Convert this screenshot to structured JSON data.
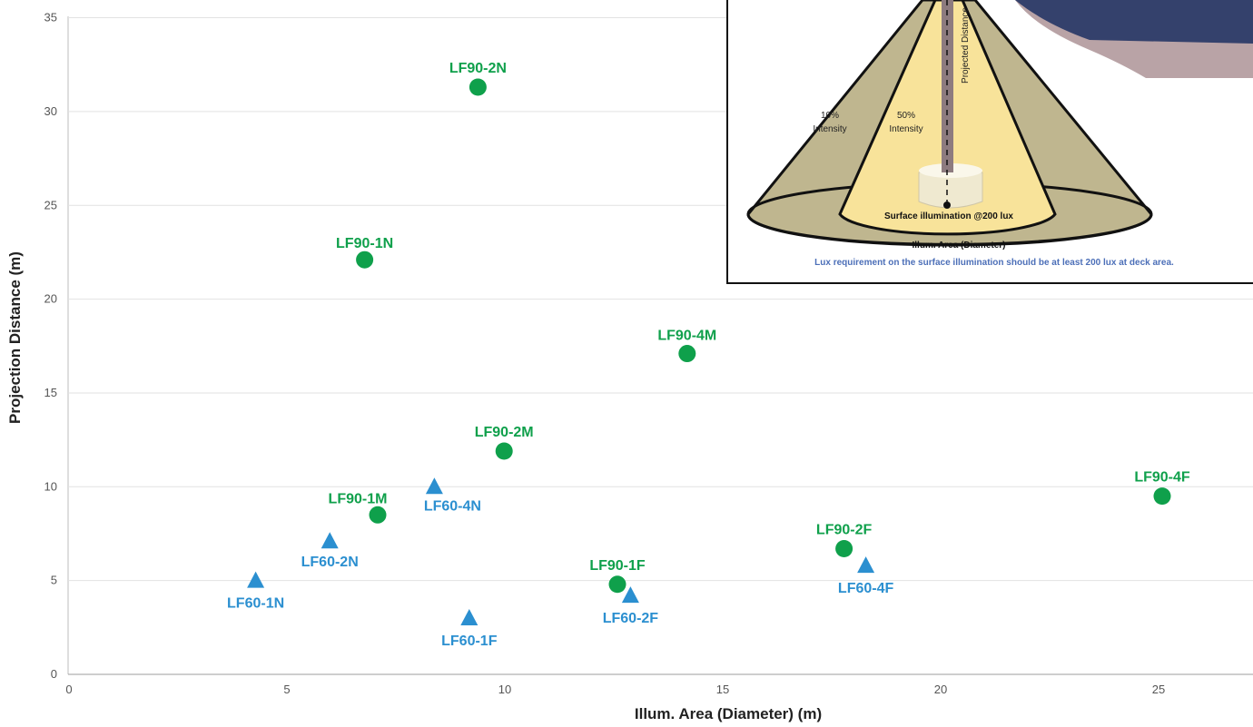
{
  "chart_data": {
    "type": "scatter",
    "title": "",
    "xlabel": "Illum. Area (Diameter) (m)",
    "ylabel": "Projection Distance (m)",
    "xlim": [
      0,
      27.5
    ],
    "ylim": [
      0,
      35
    ],
    "xticks": [
      0,
      5,
      10,
      15,
      20,
      25
    ],
    "yticks": [
      0,
      5,
      10,
      15,
      20,
      25,
      30,
      35
    ],
    "grid": "horizontal",
    "colors": {
      "LF90": "#0fa04b",
      "LF60": "#2b8fd0"
    },
    "series": [
      {
        "marker": "circle",
        "color": "#0fa04b",
        "points": [
          {
            "label": "LF90-2N",
            "x": 9.3,
            "y": 31.3
          },
          {
            "label": "LF90-1N",
            "x": 6.7,
            "y": 22.1
          },
          {
            "label": "LF90-4M",
            "x": 14.1,
            "y": 17.1
          },
          {
            "label": "LF90-2M",
            "x": 9.9,
            "y": 11.9
          },
          {
            "label": "LF90-1M",
            "x": 7.0,
            "y": 8.5
          },
          {
            "label": "LF90-4F",
            "x": 25.0,
            "y": 9.5
          },
          {
            "label": "LF90-2F",
            "x": 17.7,
            "y": 6.7
          },
          {
            "label": "LF90-1F",
            "x": 12.5,
            "y": 4.8
          }
        ]
      },
      {
        "marker": "triangle",
        "color": "#2b8fd0",
        "points": [
          {
            "label": "LF60-4N",
            "x": 8.3,
            "y": 10.0
          },
          {
            "label": "LF60-2N",
            "x": 5.9,
            "y": 7.1
          },
          {
            "label": "LF60-1N",
            "x": 4.2,
            "y": 5.0
          },
          {
            "label": "LF60-1F",
            "x": 9.1,
            "y": 3.0
          },
          {
            "label": "LF60-2F",
            "x": 12.8,
            "y": 4.2
          },
          {
            "label": "LF60-4F",
            "x": 18.2,
            "y": 5.8
          }
        ]
      }
    ]
  },
  "inset": {
    "projected_distance": "Projected Distance",
    "ten_pct": "10%",
    "ten_intensity": "Intensity",
    "fifty_pct": "50%",
    "fifty_intensity": "Intensity",
    "surface": "Surface illumination @200 lux",
    "axis_caption": "Illum. Area (Diameter)",
    "note": "Lux requirement on the surface illumination should be at least 200 lux at deck area."
  }
}
